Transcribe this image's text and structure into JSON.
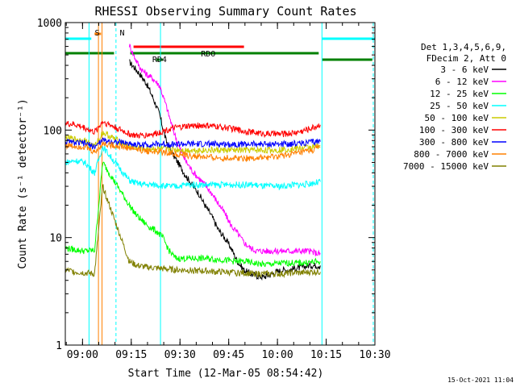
{
  "chart_data": {
    "type": "line",
    "title": "RHESSI Observing Summary Count Rates",
    "xlabel": "Start Time (12-Mar-05 08:54:42)",
    "ylabel": "Count Rate (s⁻¹ detector⁻¹)",
    "y_scale": "log",
    "ylim": [
      1,
      1000
    ],
    "xlim_minutes": [
      0,
      95.3
    ],
    "x_ticks": [
      {
        "label": "09:00",
        "t": 5.3
      },
      {
        "label": "09:15",
        "t": 20.3
      },
      {
        "label": "09:30",
        "t": 35.3
      },
      {
        "label": "09:45",
        "t": 50.3
      },
      {
        "label": "10:00",
        "t": 65.3
      },
      {
        "label": "10:15",
        "t": 80.3
      },
      {
        "label": "10:30",
        "t": 95.3
      }
    ],
    "y_ticks": [
      {
        "label": "1",
        "v": 1
      },
      {
        "label": "10",
        "v": 10
      },
      {
        "label": "100",
        "v": 100
      },
      {
        "label": "1000",
        "v": 1000
      }
    ],
    "legend": {
      "position": "right",
      "header_lines": [
        "Det 1,3,4,5,6,9,",
        "FDecim 2, Att 0"
      ]
    },
    "series": [
      {
        "name": "3 - 6 keV",
        "color": "#000000",
        "points": [
          [
            19.7,
            430
          ],
          [
            21,
            390
          ],
          [
            23,
            330
          ],
          [
            25,
            270
          ],
          [
            27,
            200
          ],
          [
            29,
            140
          ],
          [
            30,
            105
          ],
          [
            31,
            80
          ],
          [
            33,
            60
          ],
          [
            35,
            48
          ],
          [
            37,
            38
          ],
          [
            39,
            31
          ],
          [
            41,
            26
          ],
          [
            43,
            20
          ],
          [
            45,
            16
          ],
          [
            47,
            12
          ],
          [
            49,
            10
          ],
          [
            51,
            8
          ],
          [
            53,
            6
          ],
          [
            55,
            5
          ],
          [
            57,
            4.6
          ],
          [
            59,
            4.4
          ],
          [
            61,
            4.3
          ],
          [
            63,
            4.5
          ],
          [
            65,
            4.8
          ],
          [
            67,
            5
          ],
          [
            69,
            5
          ],
          [
            71,
            5.2
          ],
          [
            73,
            5.3
          ],
          [
            75,
            5.5
          ],
          [
            77,
            5.5
          ],
          [
            78.5,
            5.5
          ]
        ]
      },
      {
        "name": "6 - 12 keV",
        "color": "#ff00ff",
        "points": [
          [
            19.7,
            620
          ],
          [
            21,
            500
          ],
          [
            23,
            380
          ],
          [
            25,
            330
          ],
          [
            27,
            300
          ],
          [
            29,
            260
          ],
          [
            31,
            170
          ],
          [
            33,
            105
          ],
          [
            35,
            70
          ],
          [
            37,
            52
          ],
          [
            39,
            42
          ],
          [
            41,
            36
          ],
          [
            43,
            31
          ],
          [
            45,
            26
          ],
          [
            47,
            21
          ],
          [
            49,
            17
          ],
          [
            51,
            13
          ],
          [
            53,
            11
          ],
          [
            55,
            9
          ],
          [
            57,
            8
          ],
          [
            59,
            7.5
          ],
          [
            61,
            7.5
          ],
          [
            63,
            7.5
          ],
          [
            65,
            7.5
          ],
          [
            67,
            7.5
          ],
          [
            69,
            7.5
          ],
          [
            71,
            7.5
          ],
          [
            73,
            7.5
          ],
          [
            75,
            7.5
          ],
          [
            77,
            7.2
          ],
          [
            78.5,
            7
          ]
        ]
      },
      {
        "name": "12 - 25 keV",
        "color": "#00ff00",
        "points": [
          [
            0,
            8
          ],
          [
            3,
            7.7
          ],
          [
            6,
            7.5
          ],
          [
            9,
            7.6
          ],
          [
            11.5,
            50
          ],
          [
            19.7,
            20
          ],
          [
            22,
            16
          ],
          [
            24,
            14
          ],
          [
            26,
            12.5
          ],
          [
            28,
            11.5
          ],
          [
            30,
            10
          ],
          [
            32,
            7.5
          ],
          [
            34,
            6.4
          ],
          [
            37,
            6.4
          ],
          [
            40,
            6.4
          ],
          [
            43,
            6.4
          ],
          [
            46,
            6.3
          ],
          [
            49,
            6.2
          ],
          [
            52,
            6
          ],
          [
            55,
            6
          ],
          [
            58,
            5.8
          ],
          [
            61,
            5.6
          ],
          [
            64,
            5.7
          ],
          [
            67,
            5.8
          ],
          [
            70,
            5.8
          ],
          [
            73,
            5.8
          ],
          [
            76,
            5.9
          ],
          [
            78.5,
            6
          ]
        ]
      },
      {
        "name": "25 - 50 keV",
        "color": "#00ffff",
        "points": [
          [
            0,
            50
          ],
          [
            3,
            52
          ],
          [
            6,
            50
          ],
          [
            9,
            40
          ],
          [
            11.5,
            70
          ],
          [
            19.7,
            34
          ],
          [
            22,
            32
          ],
          [
            25,
            31
          ],
          [
            28,
            31
          ],
          [
            31,
            30
          ],
          [
            34,
            30
          ],
          [
            37,
            31
          ],
          [
            40,
            31
          ],
          [
            43,
            31
          ],
          [
            46,
            31
          ],
          [
            49,
            31
          ],
          [
            52,
            31
          ],
          [
            55,
            31
          ],
          [
            58,
            31
          ],
          [
            61,
            30
          ],
          [
            64,
            30
          ],
          [
            67,
            30
          ],
          [
            70,
            31
          ],
          [
            73,
            31
          ],
          [
            76,
            32
          ],
          [
            78.5,
            33
          ]
        ]
      },
      {
        "name": "50 - 100 keV",
        "color": "#cccc00",
        "points": [
          [
            0,
            85
          ],
          [
            3,
            82
          ],
          [
            6,
            80
          ],
          [
            9,
            70
          ],
          [
            11.5,
            95
          ],
          [
            19.7,
            70
          ],
          [
            22,
            68
          ],
          [
            25,
            67
          ],
          [
            28,
            67
          ],
          [
            31,
            66
          ],
          [
            34,
            66
          ],
          [
            37,
            65
          ],
          [
            40,
            65
          ],
          [
            43,
            65
          ],
          [
            46,
            65
          ],
          [
            49,
            65
          ],
          [
            52,
            65
          ],
          [
            55,
            65
          ],
          [
            58,
            65
          ],
          [
            61,
            65
          ],
          [
            64,
            65
          ],
          [
            67,
            66
          ],
          [
            70,
            67
          ],
          [
            73,
            68
          ],
          [
            76,
            70
          ],
          [
            78.5,
            72
          ]
        ]
      },
      {
        "name": "100 - 300 keV",
        "color": "#ff0000",
        "points": [
          [
            0,
            115
          ],
          [
            3,
            112
          ],
          [
            6,
            105
          ],
          [
            9,
            95
          ],
          [
            11.5,
            120
          ],
          [
            19.7,
            92
          ],
          [
            22,
            88
          ],
          [
            25,
            90
          ],
          [
            28,
            93
          ],
          [
            31,
            100
          ],
          [
            34,
            105
          ],
          [
            37,
            108
          ],
          [
            40,
            110
          ],
          [
            43,
            110
          ],
          [
            46,
            108
          ],
          [
            49,
            106
          ],
          [
            52,
            102
          ],
          [
            55,
            98
          ],
          [
            58,
            95
          ],
          [
            61,
            93
          ],
          [
            64,
            92
          ],
          [
            67,
            92
          ],
          [
            70,
            94
          ],
          [
            73,
            98
          ],
          [
            76,
            105
          ],
          [
            78.5,
            112
          ]
        ]
      },
      {
        "name": "300 - 800 keV",
        "color": "#0000ff",
        "points": [
          [
            0,
            78
          ],
          [
            3,
            76
          ],
          [
            6,
            75
          ],
          [
            9,
            70
          ],
          [
            11.5,
            80
          ],
          [
            19.7,
            75
          ],
          [
            22,
            73
          ],
          [
            25,
            73
          ],
          [
            28,
            74
          ],
          [
            31,
            74
          ],
          [
            34,
            74
          ],
          [
            37,
            74
          ],
          [
            40,
            74
          ],
          [
            43,
            74
          ],
          [
            46,
            74
          ],
          [
            49,
            74
          ],
          [
            52,
            74
          ],
          [
            55,
            74
          ],
          [
            58,
            74
          ],
          [
            61,
            74
          ],
          [
            64,
            74
          ],
          [
            67,
            74
          ],
          [
            70,
            75
          ],
          [
            73,
            76
          ],
          [
            76,
            77
          ],
          [
            78.5,
            78
          ]
        ]
      },
      {
        "name": "800 - 7000 keV",
        "color": "#ff8000",
        "points": [
          [
            0,
            72
          ],
          [
            3,
            71
          ],
          [
            6,
            70
          ],
          [
            9,
            62
          ],
          [
            11.5,
            75
          ],
          [
            19.7,
            68
          ],
          [
            22,
            66
          ],
          [
            25,
            64
          ],
          [
            28,
            63
          ],
          [
            31,
            62
          ],
          [
            34,
            60
          ],
          [
            37,
            58
          ],
          [
            40,
            57
          ],
          [
            43,
            56
          ],
          [
            46,
            55
          ],
          [
            49,
            55
          ],
          [
            52,
            55
          ],
          [
            55,
            55
          ],
          [
            58,
            55
          ],
          [
            61,
            55
          ],
          [
            64,
            56
          ],
          [
            67,
            58
          ],
          [
            70,
            60
          ],
          [
            73,
            62
          ],
          [
            76,
            65
          ],
          [
            78.5,
            70
          ]
        ]
      },
      {
        "name": "7000 - 15000 keV",
        "color": "#808000",
        "points": [
          [
            0,
            5
          ],
          [
            3,
            4.8
          ],
          [
            6,
            4.7
          ],
          [
            9,
            4.6
          ],
          [
            11.5,
            30
          ],
          [
            19.7,
            6
          ],
          [
            22,
            5.5
          ],
          [
            25,
            5.3
          ],
          [
            28,
            5.2
          ],
          [
            31,
            5.1
          ],
          [
            34,
            5
          ],
          [
            37,
            5
          ],
          [
            40,
            4.9
          ],
          [
            43,
            4.9
          ],
          [
            46,
            4.8
          ],
          [
            49,
            4.8
          ],
          [
            52,
            4.7
          ],
          [
            55,
            4.7
          ],
          [
            58,
            4.6
          ],
          [
            61,
            4.6
          ],
          [
            64,
            4.6
          ],
          [
            67,
            4.6
          ],
          [
            70,
            4.7
          ],
          [
            73,
            4.7
          ],
          [
            76,
            4.8
          ],
          [
            78.5,
            4.8
          ]
        ]
      }
    ],
    "annotations": [
      {
        "label": "S",
        "t": 9.8
      },
      {
        "label": "N",
        "t": 17.5
      },
      {
        "label": "RD4",
        "t": 29
      },
      {
        "label": "RDO",
        "t": 44
      }
    ],
    "timestamp": "15-Oct-2021 11:04"
  }
}
